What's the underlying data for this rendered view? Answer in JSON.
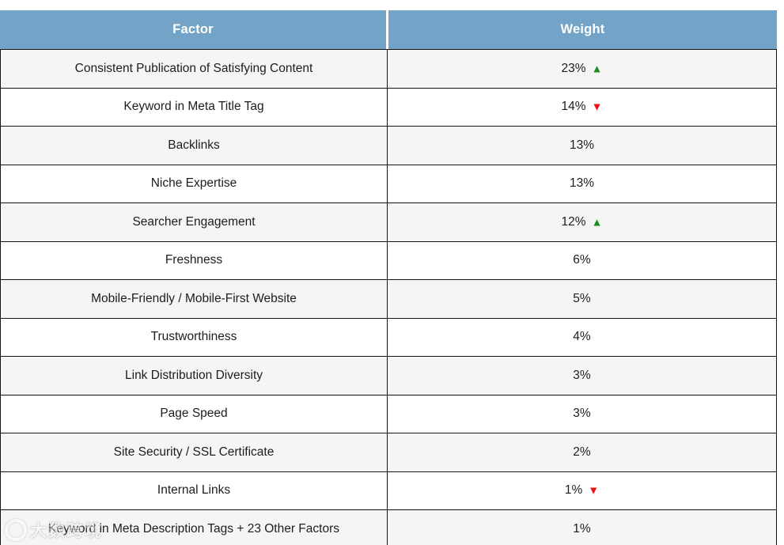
{
  "chart_data": {
    "type": "table",
    "title": "",
    "columns": [
      "Factor",
      "Weight"
    ],
    "rows": [
      {
        "factor": "Consistent Publication of Satisfying Content",
        "weight_pct": 23,
        "weight_label": "23%",
        "trend": "up"
      },
      {
        "factor": "Keyword in Meta Title Tag",
        "weight_pct": 14,
        "weight_label": "14%",
        "trend": "down"
      },
      {
        "factor": "Backlinks",
        "weight_pct": 13,
        "weight_label": "13%",
        "trend": "none"
      },
      {
        "factor": "Niche Expertise",
        "weight_pct": 13,
        "weight_label": "13%",
        "trend": "none"
      },
      {
        "factor": "Searcher Engagement",
        "weight_pct": 12,
        "weight_label": "12%",
        "trend": "up"
      },
      {
        "factor": "Freshness",
        "weight_pct": 6,
        "weight_label": "6%",
        "trend": "none"
      },
      {
        "factor": "Mobile-Friendly / Mobile-First Website",
        "weight_pct": 5,
        "weight_label": "5%",
        "trend": "none"
      },
      {
        "factor": "Trustworthiness",
        "weight_pct": 4,
        "weight_label": "4%",
        "trend": "none"
      },
      {
        "factor": "Link Distribution Diversity",
        "weight_pct": 3,
        "weight_label": "3%",
        "trend": "none"
      },
      {
        "factor": "Page Speed",
        "weight_pct": 3,
        "weight_label": "3%",
        "trend": "none"
      },
      {
        "factor": "Site Security / SSL Certificate",
        "weight_pct": 2,
        "weight_label": "2%",
        "trend": "none"
      },
      {
        "factor": "Internal Links",
        "weight_pct": 1,
        "weight_label": "1%",
        "trend": "down"
      },
      {
        "factor": "Keyword in Meta Description Tags + 23 Other Factors",
        "weight_pct": 1,
        "weight_label": "1%",
        "trend": "none"
      }
    ]
  },
  "header": {
    "factor_label": "Factor",
    "weight_label": "Weight"
  },
  "icons": {
    "up": "▲",
    "down": "▼"
  },
  "colors": {
    "header_bg": "#73A4C8",
    "header_text": "#ffffff",
    "alt_row_bg": "#f5f5f6",
    "row_bg": "#ffffff",
    "border": "#141414",
    "text": "#1d1d1f",
    "trend_up": "#1d8b1d",
    "trend_down": "#e81414"
  },
  "watermark": {
    "text": "大数跨境"
  }
}
